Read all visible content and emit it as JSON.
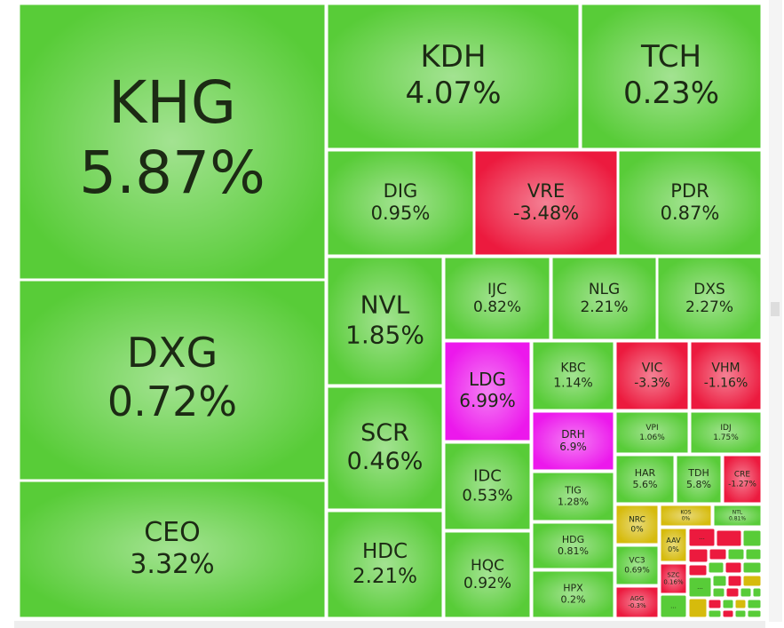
{
  "chart_data": {
    "type": "treemap",
    "categories": [
      "KHG",
      "DXG",
      "CEO",
      "KDH",
      "TCH",
      "DIG",
      "VRE",
      "PDR",
      "NVL",
      "IJC",
      "NLG",
      "DXS",
      "LDG",
      "KBC",
      "VIC",
      "VHM",
      "SCR",
      "DRH",
      "VPI",
      "IDJ",
      "IDC",
      "TIG",
      "HAR",
      "TDH",
      "CRE",
      "HDC",
      "HQC",
      "NRC",
      "KOS",
      "NTL",
      "HDG",
      "VC3",
      "AAV",
      "SZC",
      "AGG",
      "HPX"
    ],
    "values": [
      5.87,
      0.72,
      3.32,
      4.07,
      0.23,
      0.95,
      -3.48,
      0.87,
      1.85,
      0.82,
      2.21,
      2.27,
      6.99,
      1.14,
      -3.3,
      -1.16,
      0.46,
      6.9,
      1.06,
      1.75,
      0.53,
      1.28,
      5.6,
      5.8,
      -1.27,
      2.21,
      0.92,
      0,
      0,
      0.81,
      0.81,
      0.69,
      0,
      0.16,
      -0.3,
      0.2
    ],
    "value_labels": [
      "5.87%",
      "0.72%",
      "3.32%",
      "4.07%",
      "0.23%",
      "0.95%",
      "-3.48%",
      "0.87%",
      "1.85%",
      "0.82%",
      "2.21%",
      "2.27%",
      "6.99%",
      "1.14%",
      "-3.3%",
      "-1.16%",
      "0.46%",
      "6.9%",
      "1.06%",
      "1.75%",
      "0.53%",
      "1.28%",
      "5.6%",
      "5.8%",
      "-1.27%",
      "2.21%",
      "0.92%",
      "0%",
      "0%",
      "0.81%",
      "0.81%",
      "0.69%",
      "0%",
      "0.16%",
      "-0.3%",
      "0.2%"
    ],
    "colors": [
      "#58cc38",
      "#58cc38",
      "#58cc38",
      "#58cc38",
      "#58cc38",
      "#58cc38",
      "#ec1a3e",
      "#58cc38",
      "#58cc38",
      "#58cc38",
      "#58cc38",
      "#58cc38",
      "#ec18ec",
      "#58cc38",
      "#ec1a3e",
      "#ec1a3e",
      "#58cc38",
      "#ec18ec",
      "#58cc38",
      "#58cc38",
      "#58cc38",
      "#58cc38",
      "#58cc38",
      "#58cc38",
      "#ec1a3e",
      "#58cc38",
      "#58cc38",
      "#d6bb0c",
      "#d6bb0c",
      "#58cc38",
      "#58cc38",
      "#58cc38",
      "#d6bb0c",
      "#ec1a3e",
      "#ec1a3e",
      "#58cc38"
    ],
    "overflow_label": "..."
  }
}
